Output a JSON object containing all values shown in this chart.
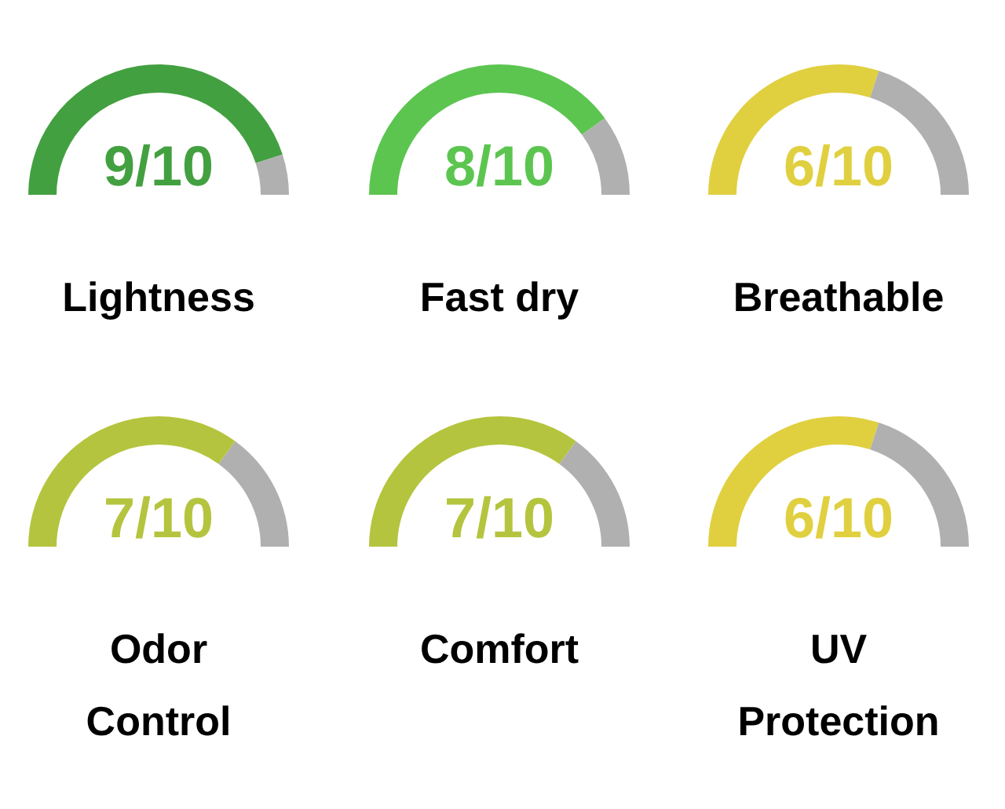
{
  "chart_data": [
    {
      "type": "donut",
      "title": "Lightness",
      "categories": [
        null,
        null
      ],
      "values": [
        90,
        10
      ],
      "colors": [
        "#43a040",
        "#b0b0b0"
      ],
      "annotations": [
        "9/10"
      ]
    },
    {
      "type": "donut",
      "title": "Fast dry",
      "categories": [
        null,
        null
      ],
      "values": [
        80,
        20
      ],
      "colors": [
        "#5cc550",
        "#b0b0b0"
      ],
      "annotations": [
        "8/10"
      ]
    },
    {
      "type": "donut",
      "title": "Breathable",
      "categories": [
        null,
        null
      ],
      "values": [
        60,
        40
      ],
      "colors": [
        "#e0d040",
        "#b0b0b0"
      ],
      "annotations": [
        "6/10"
      ]
    },
    {
      "type": "donut",
      "title": "Odor Control",
      "categories": [
        null,
        null
      ],
      "values": [
        70,
        30
      ],
      "colors": [
        "#b5c43e",
        "#b0b0b0"
      ],
      "annotations": [
        "7/10"
      ]
    },
    {
      "type": "donut",
      "title": "Comfort",
      "categories": [
        null,
        null
      ],
      "values": [
        70,
        30
      ],
      "colors": [
        "#b5c43e",
        "#b0b0b0"
      ],
      "annotations": [
        "7/10"
      ]
    },
    {
      "type": "donut",
      "title": "UV Protection",
      "categories": [
        null,
        null
      ],
      "values": [
        60,
        40
      ],
      "colors": [
        "#e0d040",
        "#b0b0b0"
      ],
      "annotations": [
        "6/10"
      ]
    }
  ]
}
